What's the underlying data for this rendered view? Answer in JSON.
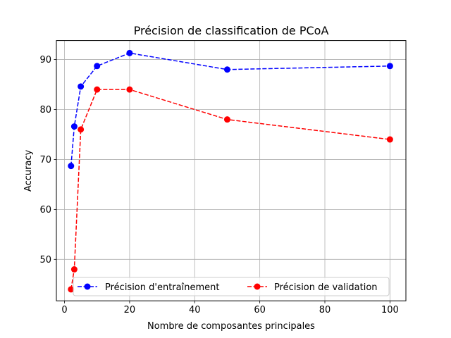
{
  "chart_data": {
    "type": "line",
    "title": "Précision de classification de PCoA",
    "xlabel": "Nombre de composantes principales",
    "ylabel": "Accuracy",
    "xlim": [
      -2.5,
      104.9
    ],
    "ylim": [
      41.7,
      93.8
    ],
    "xticks": [
      0,
      20,
      40,
      60,
      80,
      100
    ],
    "yticks": [
      50,
      60,
      70,
      80,
      90
    ],
    "grid": true,
    "legend_position": "lower-center",
    "series": [
      {
        "name": "Précision d'entraînement",
        "color": "#0000ff",
        "linestyle": "dashed",
        "marker": "circle",
        "x": [
          2,
          3,
          5,
          10,
          20,
          50,
          100
        ],
        "y": [
          68.7,
          76.6,
          84.6,
          88.7,
          91.3,
          88.0,
          88.7
        ]
      },
      {
        "name": "Précision de validation",
        "color": "#ff0000",
        "linestyle": "dashed",
        "marker": "circle",
        "x": [
          2,
          3,
          5,
          10,
          20,
          50,
          100
        ],
        "y": [
          44.0,
          48.0,
          76.0,
          84.0,
          84.0,
          78.0,
          74.0
        ]
      }
    ]
  }
}
